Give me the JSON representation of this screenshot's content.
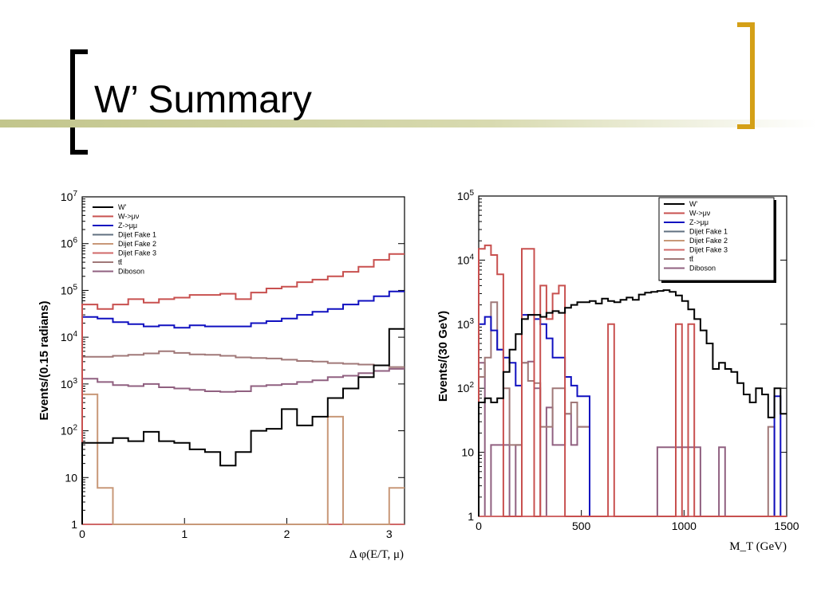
{
  "slide": {
    "title": "W’ Summary"
  },
  "colors": {
    "W'": "#000000",
    "W->μν": "#c8504f",
    "Z->μμ": "#1010c0",
    "Dijet Fake 1": "#607080",
    "Dijet Fake 2": "#c89878",
    "Dijet Fake 3": "#d06868",
    "tt̄": "#a07878",
    "Diboson": "#906080"
  },
  "chart_data": [
    {
      "type": "line",
      "xlabel": "Δ φ(E/T, μ)",
      "ylabel": "Events/(0.15 radians)",
      "xlim": [
        0,
        3.15
      ],
      "ylim": [
        1,
        10000000
      ],
      "yscale": "log",
      "xticks": [
        "0",
        "1",
        "2",
        "3"
      ],
      "yticks": [
        "1",
        "10",
        "10^2",
        "10^3",
        "10^4",
        "10^5",
        "10^6",
        "10^7"
      ],
      "legend_position": "top-left",
      "x_edges": [
        0,
        0.15,
        0.3,
        0.45,
        0.6,
        0.75,
        0.9,
        1.05,
        1.2,
        1.35,
        1.5,
        1.65,
        1.8,
        1.95,
        2.1,
        2.25,
        2.4,
        2.55,
        2.7,
        2.85,
        3.0,
        3.15
      ],
      "series": [
        {
          "name": "W'",
          "values": [
            55,
            55,
            70,
            60,
            95,
            60,
            55,
            40,
            35,
            18,
            35,
            100,
            110,
            290,
            130,
            200,
            500,
            800,
            1400,
            2500,
            15000
          ]
        },
        {
          "name": "W->μν",
          "values": [
            50000,
            40000,
            50000,
            65000,
            55000,
            65000,
            70000,
            80000,
            80000,
            85000,
            65000,
            90000,
            110000,
            120000,
            150000,
            170000,
            200000,
            250000,
            320000,
            450000,
            600000
          ]
        },
        {
          "name": "Z->μμ",
          "values": [
            27000,
            25000,
            21000,
            19000,
            17000,
            18000,
            16000,
            18000,
            17000,
            17000,
            17000,
            20000,
            22000,
            25000,
            30000,
            35000,
            40000,
            50000,
            60000,
            75000,
            95000
          ]
        },
        {
          "name": "Dijet Fake 1",
          "values": [
            1,
            1,
            1,
            1,
            1,
            1,
            1,
            1,
            1,
            1,
            1,
            1,
            1,
            1,
            1,
            1,
            1,
            1,
            1,
            1,
            1
          ]
        },
        {
          "name": "Dijet Fake 2",
          "values": [
            600,
            6,
            1,
            1,
            1,
            1,
            1,
            1,
            1,
            1,
            1,
            1,
            1,
            1,
            1,
            1,
            200,
            1,
            1,
            1,
            6
          ]
        },
        {
          "name": "Dijet Fake 3",
          "values": [
            1,
            1,
            1,
            1,
            1,
            1,
            1,
            1,
            1,
            1,
            1,
            1,
            1,
            1,
            1,
            1,
            1,
            1,
            1,
            1,
            1
          ]
        },
        {
          "name": "tt̄",
          "values": [
            3800,
            3800,
            4000,
            4200,
            4500,
            5000,
            4600,
            4300,
            4200,
            4000,
            3700,
            3600,
            3500,
            3300,
            3100,
            3000,
            2800,
            2700,
            2600,
            2500,
            2300
          ]
        },
        {
          "name": "Diboson",
          "values": [
            1300,
            1100,
            950,
            900,
            1000,
            850,
            800,
            750,
            700,
            680,
            700,
            900,
            950,
            1000,
            1100,
            1200,
            1400,
            1500,
            1700,
            1900,
            2100
          ]
        }
      ]
    },
    {
      "type": "line",
      "xlabel": "M_T (GeV)",
      "ylabel": "Events/(30 GeV)",
      "xlim": [
        0,
        1500
      ],
      "ylim": [
        1,
        100000
      ],
      "yscale": "log",
      "xticks": [
        "0",
        "500",
        "1000",
        "1500"
      ],
      "yticks": [
        "1",
        "10",
        "10^2",
        "10^3",
        "10^4",
        "10^5"
      ],
      "legend_position": "top-right",
      "bin_width": 30,
      "series": [
        {
          "name": "W'",
          "values": [
            60,
            70,
            60,
            70,
            180,
            400,
            700,
            1200,
            1400,
            1400,
            1300,
            1500,
            1600,
            1500,
            1800,
            2000,
            2200,
            2200,
            2300,
            2100,
            2500,
            2300,
            2200,
            2400,
            2600,
            2400,
            2900,
            3100,
            3200,
            3300,
            3400,
            3200,
            2800,
            2300,
            1700,
            1200,
            800,
            500,
            200,
            250,
            200,
            180,
            120,
            80,
            60,
            100,
            80,
            35,
            100,
            40
          ]
        },
        {
          "name": "W->μν",
          "values": [
            15000,
            17000,
            12000,
            6000,
            1,
            1,
            1,
            15000,
            15000,
            1,
            4000,
            1200,
            3000,
            4000,
            1,
            1,
            1,
            1,
            1,
            1,
            1,
            1000,
            1,
            1,
            1,
            1,
            1,
            1,
            1,
            1,
            1,
            1,
            1000,
            1,
            1000,
            1,
            1,
            1,
            1,
            1,
            1,
            1,
            1,
            1,
            1,
            1,
            1,
            1,
            1,
            1
          ]
        },
        {
          "name": "Z->μμ",
          "values": [
            1000,
            1300,
            800,
            400,
            300,
            250,
            110,
            1400,
            1400,
            1200,
            1000,
            600,
            300,
            300,
            150,
            110,
            75,
            75,
            1,
            1,
            1,
            1,
            1,
            1,
            1,
            1,
            1,
            1,
            1,
            1,
            1,
            1,
            1,
            1,
            1,
            1,
            1,
            1,
            1,
            1,
            1,
            1,
            1,
            1,
            1,
            1,
            1,
            1,
            75,
            1
          ]
        },
        {
          "name": "Dijet Fake 1",
          "values": [
            1,
            1,
            1,
            1,
            1,
            1,
            1,
            1,
            1,
            1,
            1,
            1,
            1,
            1,
            1,
            1,
            1,
            1,
            1,
            1,
            1,
            1,
            1,
            1,
            1,
            1,
            1,
            1,
            1,
            1,
            1,
            1,
            1,
            1,
            1,
            1,
            1,
            1,
            1,
            1,
            1,
            1,
            1,
            1,
            1,
            1,
            1,
            1,
            1,
            1
          ]
        },
        {
          "name": "Dijet Fake 2",
          "values": [
            1,
            1,
            1,
            1,
            1,
            1,
            1,
            1,
            1,
            1,
            1,
            1,
            1,
            1,
            1,
            1,
            1,
            1,
            1,
            1,
            1,
            1,
            1,
            1,
            1,
            1,
            1,
            1,
            1,
            1,
            1,
            1,
            1,
            1,
            1,
            1,
            1,
            1,
            1,
            1,
            1,
            1,
            1,
            1,
            1,
            1,
            1,
            1,
            1,
            1
          ]
        },
        {
          "name": "Dijet Fake 3",
          "values": [
            1,
            1,
            1,
            1,
            1,
            1,
            1,
            1,
            1,
            1,
            1,
            1,
            1,
            1,
            1,
            1,
            1,
            1,
            1,
            1,
            1,
            1,
            1,
            1,
            1,
            1,
            1,
            1,
            1,
            1,
            1,
            1,
            1,
            1,
            1,
            1,
            1,
            1,
            1,
            1,
            1,
            1,
            1,
            1,
            1,
            1,
            1,
            1,
            1,
            1
          ]
        },
        {
          "name": "tt̄",
          "values": [
            150,
            300,
            2200,
            400,
            100,
            13,
            13,
            250,
            130,
            120,
            25,
            25,
            100,
            100,
            40,
            60,
            25,
            25,
            1,
            1,
            1,
            1,
            1,
            1,
            1,
            1,
            1,
            1,
            1,
            1,
            1,
            1,
            1,
            1,
            1,
            1,
            1,
            1,
            1,
            1,
            1,
            1,
            1,
            1,
            1,
            1,
            1,
            25,
            1,
            1
          ]
        },
        {
          "name": "Diboson",
          "values": [
            250,
            1,
            13,
            13,
            13,
            1,
            13,
            250,
            260,
            100,
            1,
            50,
            13,
            13,
            40,
            13,
            25,
            25,
            1,
            1,
            1,
            1,
            1,
            1,
            1,
            1,
            1,
            1,
            1,
            12,
            12,
            12,
            12,
            12,
            12,
            12,
            1,
            1,
            1,
            12,
            1,
            1,
            1,
            1,
            1,
            1,
            1,
            1,
            1,
            1
          ]
        }
      ]
    }
  ]
}
